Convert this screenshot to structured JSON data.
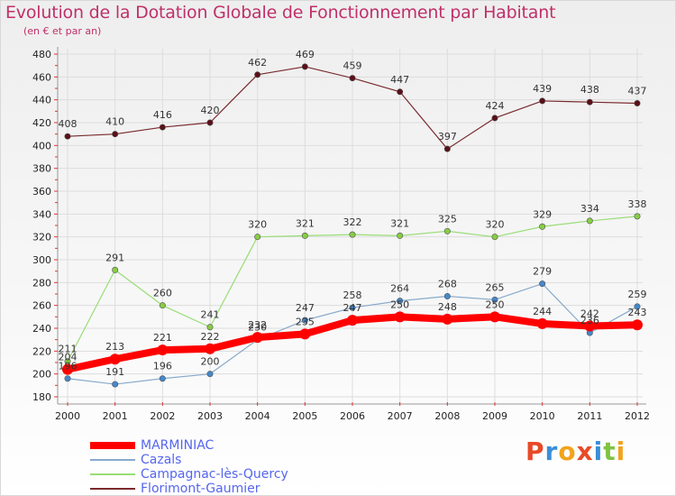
{
  "title": "Evolution de la Dotation Globale de Fonctionnement par Habitant",
  "subtitle": "(en € et par an)",
  "logo": {
    "letters": [
      "P",
      "r",
      "o",
      "x",
      "i",
      "t",
      "i"
    ],
    "colors": [
      "#e84a27",
      "#3b8ed8",
      "#f2a31b",
      "#e84a27",
      "#3b8ed8",
      "#80c342",
      "#f2a31b"
    ]
  },
  "chart_data": {
    "type": "line",
    "title": "Evolution de la Dotation Globale de Fonctionnement par Habitant",
    "subtitle": "(en € et par an)",
    "x": [
      "2000",
      "2001",
      "2002",
      "2003",
      "2004",
      "2005",
      "2006",
      "2007",
      "2008",
      "2009",
      "2010",
      "2011",
      "2012"
    ],
    "ylim": [
      180,
      480
    ],
    "yticks": [
      180,
      200,
      220,
      240,
      260,
      280,
      300,
      320,
      340,
      360,
      380,
      400,
      420,
      440,
      460,
      480
    ],
    "legend_position": "bottom-left",
    "grid": true,
    "series": [
      {
        "name": "Florimont-Gaumier",
        "color": "#7a2a2e",
        "marker": "#5a1018",
        "width": 1.2,
        "values": [
          408,
          410,
          416,
          420,
          462,
          469,
          459,
          447,
          397,
          424,
          439,
          438,
          437
        ],
        "labels": [
          "408",
          "410",
          "416",
          "420",
          "462",
          "469",
          "459",
          "447",
          "397",
          "424",
          "439",
          "438",
          "437"
        ]
      },
      {
        "name": "Campagnac-lès-Quercy",
        "color": "#99dd77",
        "marker": "#88cc44",
        "width": 1.2,
        "values": [
          211,
          291,
          260,
          241,
          320,
          321,
          322,
          321,
          325,
          320,
          329,
          334,
          338
        ],
        "labels": [
          "211",
          "291",
          "260",
          "241",
          "320",
          "321",
          "322",
          "321",
          "325",
          "320",
          "329",
          "334",
          "338"
        ]
      },
      {
        "name": "Cazals",
        "color": "#88aacc",
        "marker": "#4488cc",
        "width": 1.2,
        "values": [
          196,
          191,
          196,
          200,
          230,
          247,
          258,
          264,
          268,
          265,
          279,
          236,
          259
        ],
        "labels": [
          "196",
          "191",
          "196",
          "200",
          "230",
          "247",
          "258",
          "264",
          "268",
          "265",
          "279",
          "236",
          "259"
        ]
      },
      {
        "name": "MARMINIAC",
        "color": "#ff0000",
        "marker": "#ff0000",
        "width": 8,
        "values": [
          204,
          213,
          221,
          222,
          232,
          235,
          247,
          250,
          248,
          250,
          244,
          242,
          243
        ],
        "labels": [
          "204",
          "213",
          "221",
          "222",
          "232",
          "235",
          "247",
          "250",
          "248",
          "250",
          "244",
          "242",
          "243"
        ]
      }
    ],
    "legend": [
      {
        "name": "MARMINIAC",
        "color": "#ff0000",
        "width": 8
      },
      {
        "name": "Cazals",
        "color": "#88aacc",
        "width": 2
      },
      {
        "name": "Campagnac-lès-Quercy",
        "color": "#99dd77",
        "width": 2
      },
      {
        "name": "Florimont-Gaumier",
        "color": "#7a2a2e",
        "width": 2
      }
    ]
  }
}
